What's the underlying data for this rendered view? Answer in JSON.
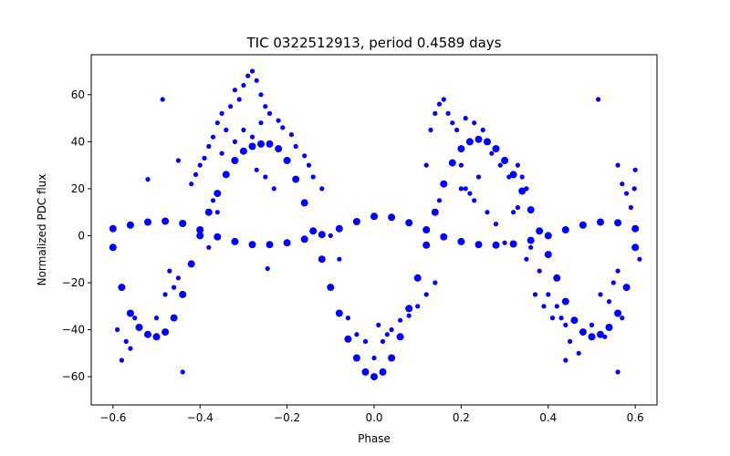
{
  "chart_data": {
    "type": "scatter",
    "title": "TIC 0322512913, period 0.4589 days",
    "xlabel": "Phase",
    "ylabel": "Normalized PDC flux",
    "xlim": [
      -0.65,
      0.65
    ],
    "ylim": [
      -72,
      77
    ],
    "xticks": [
      -0.6,
      -0.4,
      -0.2,
      0.0,
      0.2,
      0.4,
      0.6
    ],
    "xtick_labels": [
      "−0.6",
      "−0.4",
      "−0.2",
      "0.0",
      "0.2",
      "0.4",
      "0.6"
    ],
    "yticks": [
      -60,
      -40,
      -20,
      0,
      20,
      40,
      60
    ],
    "ytick_labels": [
      "−60",
      "−40",
      "−20",
      "0",
      "20",
      "40",
      "60"
    ],
    "grid": false,
    "marker_color": "#0000ff",
    "series": [
      {
        "shape": "dominant sinusoid",
        "points": [
          [
            -0.6,
            -5
          ],
          [
            -0.58,
            -22
          ],
          [
            -0.56,
            -33
          ],
          [
            -0.54,
            -39
          ],
          [
            -0.52,
            -42
          ],
          [
            -0.5,
            -43
          ],
          [
            -0.48,
            -41
          ],
          [
            -0.46,
            -35
          ],
          [
            -0.44,
            -25
          ],
          [
            -0.42,
            -12
          ],
          [
            -0.4,
            0
          ],
          [
            -0.38,
            10
          ],
          [
            -0.36,
            18
          ],
          [
            -0.34,
            26
          ],
          [
            -0.32,
            32
          ],
          [
            -0.3,
            36
          ],
          [
            -0.28,
            38
          ],
          [
            -0.26,
            39
          ],
          [
            -0.24,
            39
          ],
          [
            -0.22,
            37
          ],
          [
            -0.2,
            32
          ],
          [
            -0.18,
            24
          ],
          [
            -0.16,
            14
          ],
          [
            -0.14,
            2
          ],
          [
            -0.12,
            -10
          ],
          [
            -0.1,
            -22
          ],
          [
            -0.08,
            -33
          ],
          [
            -0.06,
            -44
          ],
          [
            -0.04,
            -52
          ],
          [
            -0.02,
            -58
          ],
          [
            0.0,
            -60
          ],
          [
            0.02,
            -58
          ],
          [
            0.04,
            -52
          ],
          [
            0.06,
            -43
          ],
          [
            0.08,
            -31
          ],
          [
            0.1,
            -18
          ],
          [
            0.12,
            -4
          ],
          [
            0.14,
            10
          ],
          [
            0.16,
            22
          ],
          [
            0.18,
            31
          ],
          [
            0.2,
            37
          ],
          [
            0.22,
            40
          ],
          [
            0.24,
            41
          ],
          [
            0.26,
            40
          ],
          [
            0.28,
            37
          ],
          [
            0.3,
            32
          ],
          [
            0.32,
            26
          ],
          [
            0.34,
            19
          ],
          [
            0.36,
            11
          ],
          [
            0.38,
            2
          ],
          [
            0.4,
            -8
          ],
          [
            0.42,
            -18
          ],
          [
            0.44,
            -28
          ],
          [
            0.46,
            -36
          ],
          [
            0.48,
            -41
          ],
          [
            0.5,
            -43
          ],
          [
            0.52,
            -42
          ],
          [
            0.54,
            -39
          ],
          [
            0.56,
            -33
          ],
          [
            0.58,
            -22
          ],
          [
            0.6,
            -5
          ]
        ]
      },
      {
        "shape": "low-amplitude curve",
        "points": [
          [
            -0.6,
            3
          ],
          [
            -0.56,
            4.5
          ],
          [
            -0.52,
            5.8
          ],
          [
            -0.48,
            6.2
          ],
          [
            -0.44,
            5.2
          ],
          [
            -0.4,
            2.5
          ],
          [
            -0.36,
            -0.5
          ],
          [
            -0.32,
            -2.5
          ],
          [
            -0.28,
            -3.8
          ],
          [
            -0.24,
            -3.8
          ],
          [
            -0.2,
            -3
          ],
          [
            -0.16,
            -1.5
          ],
          [
            -0.12,
            0.5
          ],
          [
            -0.08,
            3
          ],
          [
            -0.04,
            6
          ],
          [
            0.0,
            8.2
          ],
          [
            0.04,
            7.8
          ],
          [
            0.08,
            5.5
          ],
          [
            0.12,
            2.5
          ],
          [
            0.16,
            -0.5
          ],
          [
            0.2,
            -2.5
          ],
          [
            0.24,
            -3.8
          ],
          [
            0.28,
            -4
          ],
          [
            0.32,
            -3.5
          ],
          [
            0.36,
            -2
          ],
          [
            0.4,
            0
          ],
          [
            0.44,
            2.5
          ],
          [
            0.48,
            4.5
          ],
          [
            0.52,
            5.8
          ],
          [
            0.56,
            5.5
          ],
          [
            0.6,
            3
          ]
        ]
      },
      {
        "shape": "scattered outliers",
        "points": [
          [
            -0.28,
            70
          ],
          [
            -0.29,
            68
          ],
          [
            -0.27,
            66
          ],
          [
            -0.3,
            64
          ],
          [
            -0.32,
            62
          ],
          [
            -0.31,
            58
          ],
          [
            -0.33,
            55
          ],
          [
            -0.35,
            52
          ],
          [
            -0.36,
            48
          ],
          [
            -0.34,
            45
          ],
          [
            -0.37,
            42
          ],
          [
            -0.38,
            38
          ],
          [
            -0.39,
            33
          ],
          [
            -0.4,
            30
          ],
          [
            -0.41,
            26
          ],
          [
            -0.42,
            22
          ],
          [
            -0.26,
            60
          ],
          [
            -0.25,
            55
          ],
          [
            -0.24,
            52
          ],
          [
            -0.22,
            49
          ],
          [
            -0.21,
            46
          ],
          [
            -0.19,
            43
          ],
          [
            -0.18,
            38
          ],
          [
            -0.16,
            34
          ],
          [
            -0.15,
            30
          ],
          [
            -0.14,
            25
          ],
          [
            -0.12,
            20
          ],
          [
            -0.36,
            10
          ],
          [
            -0.37,
            15
          ],
          [
            -0.45,
            32
          ],
          [
            -0.486,
            58
          ],
          [
            -0.52,
            24
          ],
          [
            -0.245,
            -14
          ],
          [
            -0.44,
            -58
          ],
          [
            -0.58,
            -53
          ],
          [
            -0.57,
            -45
          ],
          [
            -0.59,
            -40
          ],
          [
            -0.55,
            -35
          ],
          [
            -0.56,
            -48
          ],
          [
            -0.5,
            -35
          ],
          [
            -0.48,
            -25
          ],
          [
            -0.46,
            -22
          ],
          [
            -0.47,
            -15
          ],
          [
            -0.45,
            -18
          ],
          [
            0.0,
            -52
          ],
          [
            0.02,
            -45
          ],
          [
            0.04,
            -40
          ],
          [
            0.06,
            -36
          ],
          [
            0.08,
            -34
          ],
          [
            0.1,
            -30
          ],
          [
            0.12,
            -25
          ],
          [
            0.14,
            -20
          ],
          [
            0.15,
            15
          ],
          [
            0.12,
            30
          ],
          [
            0.13,
            45
          ],
          [
            0.14,
            52
          ],
          [
            0.15,
            56
          ],
          [
            0.16,
            58
          ],
          [
            0.17,
            52
          ],
          [
            0.18,
            48
          ],
          [
            0.19,
            45
          ],
          [
            0.2,
            30
          ],
          [
            0.21,
            20
          ],
          [
            0.22,
            18
          ],
          [
            0.23,
            15
          ],
          [
            0.26,
            10
          ],
          [
            0.28,
            5
          ],
          [
            0.3,
            -3
          ],
          [
            0.32,
            10
          ],
          [
            0.33,
            30
          ],
          [
            0.34,
            25
          ],
          [
            0.36,
            -5
          ],
          [
            0.38,
            -15
          ],
          [
            0.4,
            -25
          ],
          [
            0.42,
            -30
          ],
          [
            0.43,
            -35
          ],
          [
            0.44,
            -38
          ],
          [
            0.45,
            -45
          ],
          [
            0.47,
            -50
          ],
          [
            0.44,
            -53
          ],
          [
            0.515,
            58
          ],
          [
            0.56,
            30
          ],
          [
            0.57,
            22
          ],
          [
            0.58,
            18
          ],
          [
            0.59,
            12
          ],
          [
            0.6,
            28
          ],
          [
            0.598,
            20
          ],
          [
            0.52,
            -25
          ],
          [
            0.54,
            -28
          ],
          [
            0.55,
            -20
          ],
          [
            0.56,
            -15
          ],
          [
            0.57,
            -35
          ],
          [
            0.56,
            -58
          ],
          [
            0.5,
            -38
          ],
          [
            0.53,
            -43
          ],
          [
            0.61,
            -10
          ],
          [
            0.35,
            20
          ],
          [
            0.37,
            -25
          ],
          [
            0.39,
            -30
          ],
          [
            0.41,
            -35
          ],
          [
            -0.08,
            -10
          ],
          [
            -0.1,
            0
          ],
          [
            -0.06,
            -35
          ],
          [
            -0.04,
            -42
          ],
          [
            -0.02,
            -45
          ],
          [
            0.01,
            -38
          ],
          [
            0.03,
            -42
          ],
          [
            -0.28,
            42
          ],
          [
            -0.3,
            45
          ],
          [
            -0.26,
            48
          ],
          [
            -0.32,
            40
          ],
          [
            -0.35,
            35
          ],
          [
            0.27,
            35
          ],
          [
            0.29,
            30
          ],
          [
            0.31,
            25
          ],
          [
            0.25,
            45
          ],
          [
            0.23,
            48
          ],
          [
            0.21,
            50
          ],
          [
            -0.23,
            20
          ],
          [
            -0.25,
            25
          ],
          [
            -0.27,
            28
          ],
          [
            0.24,
            25
          ],
          [
            0.2,
            20
          ],
          [
            -0.38,
            -5
          ],
          [
            0.35,
            -10
          ],
          [
            0.33,
            12
          ]
        ]
      }
    ]
  }
}
